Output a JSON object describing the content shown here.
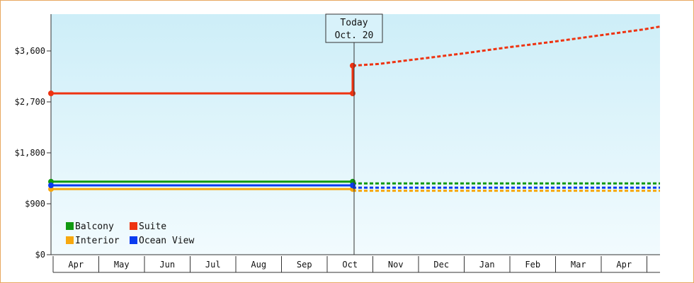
{
  "chart_data": {
    "type": "line",
    "today_marker": {
      "line1": "Today",
      "line2": "Oct. 20"
    },
    "x": [
      "Apr",
      "May",
      "Jun",
      "Jul",
      "Aug",
      "Sep",
      "Oct",
      "Nov",
      "Dec",
      "Jan",
      "Feb",
      "Mar",
      "Apr"
    ],
    "ylim": [
      0,
      4250
    ],
    "y_ticks": [
      {
        "value": 0,
        "label": "$0"
      },
      {
        "value": 900,
        "label": "$900"
      },
      {
        "value": 1800,
        "label": "$1,800"
      },
      {
        "value": 2700,
        "label": "$2,700"
      },
      {
        "value": 3600,
        "label": "$3,600"
      }
    ],
    "legend_position": "bottom-left",
    "series": [
      {
        "name": "Balcony",
        "color": "#119911",
        "history": [
          [
            0,
            1290
          ],
          [
            6.65,
            1290
          ]
        ],
        "forecast": [
          [
            6.65,
            1260
          ],
          [
            13.4,
            1260
          ]
        ]
      },
      {
        "name": "Suite",
        "color": "#ee3311",
        "history": [
          [
            0,
            2850
          ],
          [
            6.65,
            2850
          ],
          [
            6.65,
            3340
          ]
        ],
        "forecast": [
          [
            6.65,
            3340
          ],
          [
            7.2,
            3370
          ],
          [
            8,
            3450
          ],
          [
            9,
            3550
          ],
          [
            10,
            3660
          ],
          [
            11,
            3760
          ],
          [
            12,
            3870
          ],
          [
            13,
            3980
          ],
          [
            13.4,
            4030
          ]
        ]
      },
      {
        "name": "Interior",
        "color": "#f7a80f",
        "history": [
          [
            0,
            1160
          ],
          [
            6.65,
            1160
          ]
        ],
        "forecast": [
          [
            6.65,
            1130
          ],
          [
            13.4,
            1130
          ]
        ]
      },
      {
        "name": "Ocean View",
        "color": "#0a3bf0",
        "history": [
          [
            0,
            1225
          ],
          [
            6.65,
            1225
          ]
        ],
        "forecast": [
          [
            6.65,
            1185
          ],
          [
            13.4,
            1185
          ]
        ]
      }
    ]
  }
}
